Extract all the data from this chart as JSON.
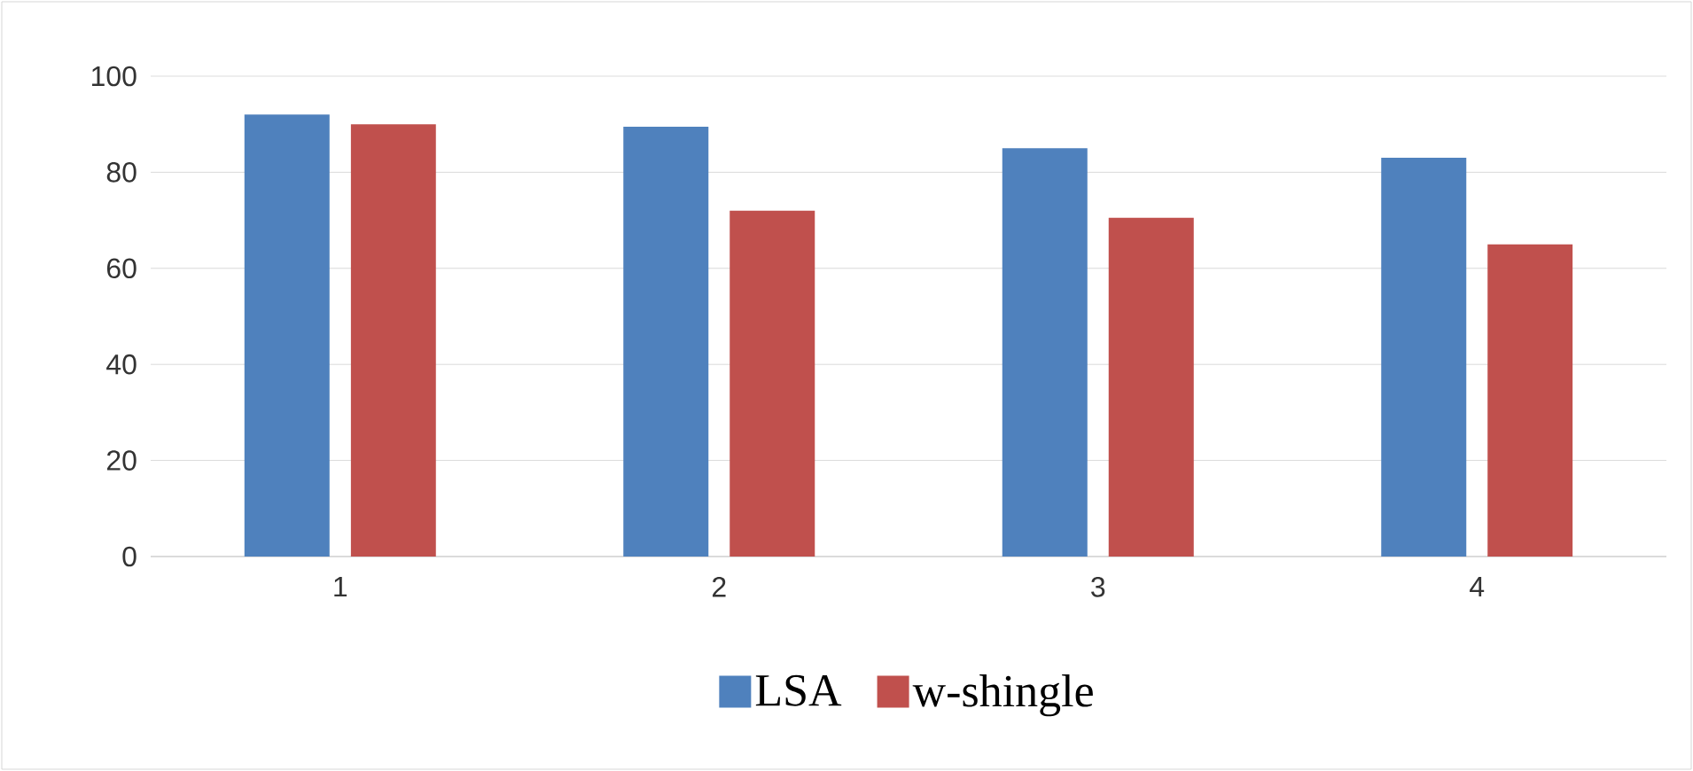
{
  "chart_data": {
    "type": "bar",
    "categories": [
      "1",
      "2",
      "3",
      "4"
    ],
    "series": [
      {
        "name": "LSA",
        "color": "#4f81bd",
        "values": [
          92,
          89.5,
          85,
          83
        ]
      },
      {
        "name": "w-shingle",
        "color": "#c0504d",
        "values": [
          90,
          72,
          70.5,
          65
        ]
      }
    ],
    "ylim": [
      0,
      100
    ],
    "yticks": [
      0,
      20,
      40,
      60,
      80,
      100
    ],
    "grid": "y",
    "legend": "bottom"
  }
}
